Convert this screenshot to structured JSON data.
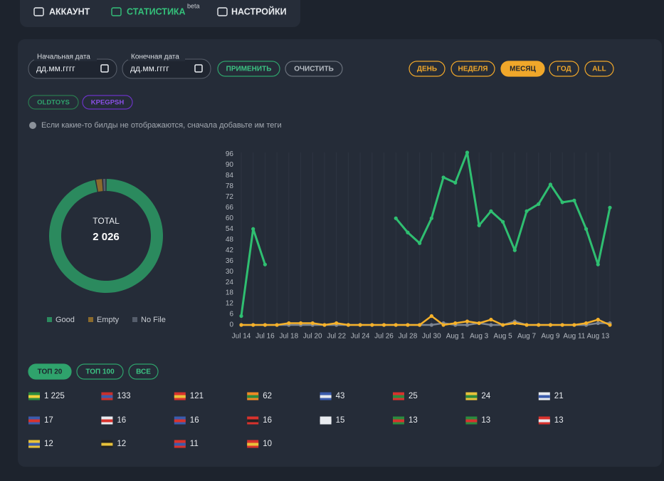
{
  "nav": {
    "items": [
      "АККАУНТ",
      "СТАТИСТИКА",
      "НАСТРОЙКИ"
    ],
    "badge": "beta"
  },
  "filters": {
    "start_label": "Начальная дата",
    "end_label": "Конечная дата",
    "placeholder": "дд.мм.гггг",
    "apply": "ПРИМЕНИТЬ",
    "clear": "ОЧИСТИТЬ",
    "periods": [
      "ДЕНЬ",
      "НЕДЕЛЯ",
      "МЕСЯЦ",
      "ГОД",
      "ALL"
    ]
  },
  "tags": [
    "OLDTOYS",
    "KPEGPSH"
  ],
  "info": "Если какие-то билды не отображаются, сначала добавьте им теги",
  "chart_data": [
    {
      "type": "donut",
      "center_label": "TOTAL",
      "center_value": "2 026",
      "categories": [
        "Good",
        "Empty",
        "No File"
      ],
      "values": [
        1966,
        40,
        20
      ],
      "colors": [
        "#2b8a5e",
        "#8a6a2c",
        "#555d6b"
      ]
    },
    {
      "type": "line",
      "categories": [
        "Jul 14",
        null,
        "Jul 16",
        null,
        "Jul 18",
        null,
        "Jul 20",
        null,
        "Jul 22",
        null,
        "Jul 24",
        null,
        "Jul 26",
        null,
        "Jul 28",
        null,
        "Jul 30",
        null,
        "Aug 1",
        null,
        "Aug 3",
        null,
        "Aug 5",
        null,
        "Aug 7",
        null,
        "Aug 9",
        null,
        "Aug 11",
        null,
        "Aug 13",
        null
      ],
      "series": [
        {
          "name": "Good",
          "color": "#2fbf71",
          "values": [
            5,
            54,
            34,
            null,
            null,
            null,
            null,
            null,
            null,
            null,
            null,
            null,
            null,
            60,
            52,
            46,
            60,
            83,
            80,
            97,
            56,
            64,
            58,
            42,
            64,
            68,
            79,
            69,
            70,
            54,
            34,
            66
          ]
        },
        {
          "name": "No File",
          "color": "#7d8591",
          "values": [
            0,
            0,
            0,
            0,
            0,
            0,
            0,
            0,
            0,
            0,
            0,
            0,
            0,
            0,
            0,
            0,
            0,
            1,
            0,
            0,
            1,
            0,
            0,
            2,
            0,
            0,
            0,
            0,
            0,
            0,
            1,
            1
          ]
        },
        {
          "name": "Empty",
          "color": "#f5b12a",
          "values": [
            0,
            0,
            0,
            0,
            1,
            1,
            1,
            0,
            1,
            0,
            0,
            0,
            0,
            0,
            0,
            0,
            5,
            0,
            1,
            2,
            1,
            3,
            0,
            1,
            0,
            0,
            0,
            0,
            0,
            1,
            3,
            0
          ]
        }
      ],
      "ylim": [
        0,
        97
      ],
      "yticks": [
        0,
        6,
        12,
        18,
        24,
        30,
        36,
        42,
        48,
        54,
        60,
        66,
        72,
        78,
        84,
        90,
        96
      ],
      "grid": true
    }
  ],
  "top": {
    "tabs": [
      "ТОП 20",
      "ТОП 100",
      "ВСЕ"
    ],
    "countries": [
      "1 225",
      "133",
      "121",
      "62",
      "43",
      "25",
      "24",
      "21",
      "17",
      "16",
      "16",
      "16",
      "15",
      "13",
      "13",
      "13",
      "12",
      "12",
      "11",
      "10"
    ]
  }
}
